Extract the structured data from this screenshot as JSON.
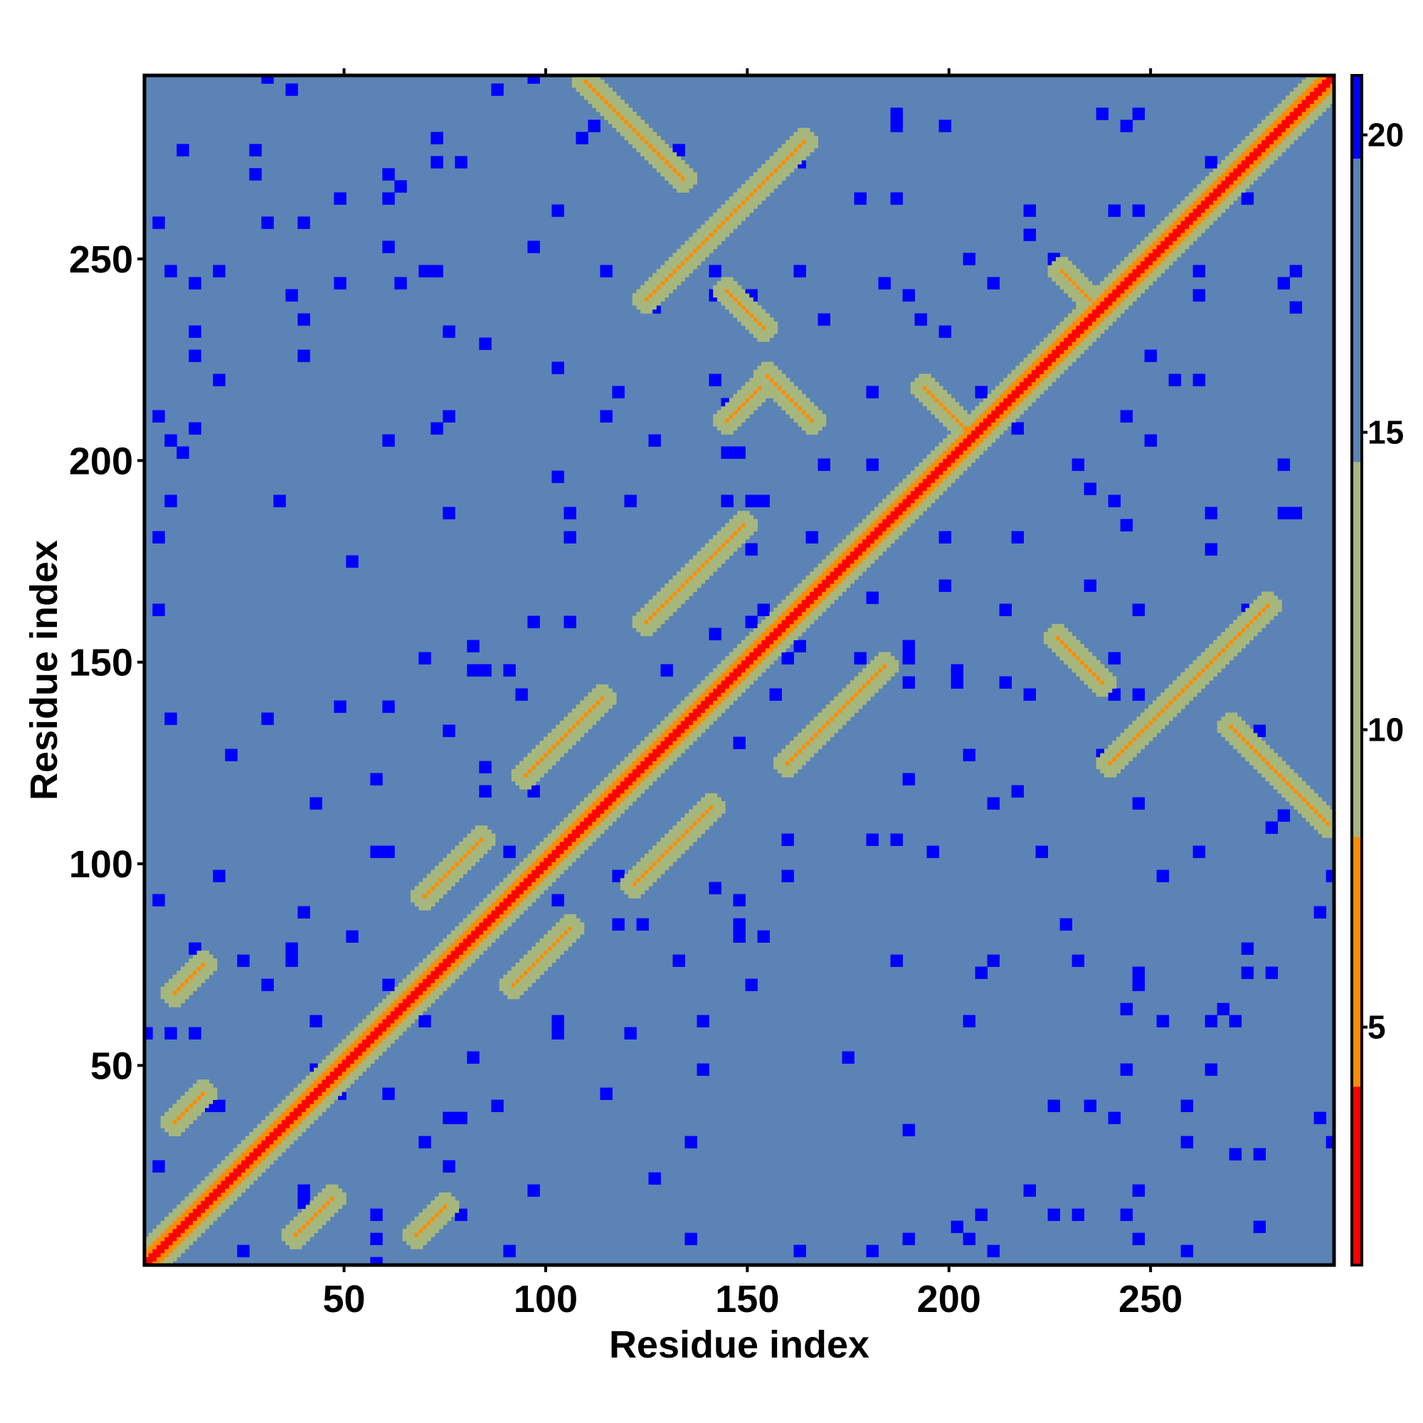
{
  "chart_data": {
    "type": "heatmap",
    "title": "",
    "xlabel": "Residue index",
    "ylabel": "Residue index",
    "n_residues": 295,
    "xlim": [
      1,
      295
    ],
    "ylim": [
      1,
      295
    ],
    "x_ticks": [
      50,
      100,
      150,
      200,
      250
    ],
    "y_ticks": [
      50,
      100,
      150,
      200,
      250
    ],
    "grid": false,
    "colorbar": {
      "position": "right",
      "range": [
        1,
        21
      ],
      "ticks": [
        5,
        10,
        15,
        20
      ],
      "bands": [
        {
          "from": 1,
          "to": 4,
          "color": "#ff0000"
        },
        {
          "from": 4,
          "to": 8.2,
          "color": "#ff8c00"
        },
        {
          "from": 8.2,
          "to": 14.5,
          "color": "#a6b77d"
        },
        {
          "from": 14.5,
          "to": 19.6,
          "color": "#5b83b5"
        },
        {
          "from": 19.6,
          "to": 21,
          "color": "#0000ff"
        }
      ]
    },
    "features": {
      "diagonal_band": {
        "from": 1,
        "to": 295,
        "value": 2
      },
      "distance_background": 17,
      "far_contacts_value": 21,
      "contact_strands": [
        {
          "i_start": 194,
          "j_start": 207,
          "length": 12,
          "orientation": "antiparallel"
        },
        {
          "i_start": 228,
          "j_start": 240,
          "length": 8,
          "orientation": "antiparallel"
        },
        {
          "i_start": 145,
          "j_start": 233,
          "length": 10,
          "orientation": "antiparallel"
        },
        {
          "i_start": 145,
          "j_start": 210,
          "length": 9,
          "orientation": "parallel"
        },
        {
          "i_start": 155,
          "j_start": 210,
          "length": 12,
          "orientation": "antiparallel"
        },
        {
          "i_start": 227,
          "j_start": 145,
          "length": 12,
          "orientation": "antiparallel"
        },
        {
          "i_start": 38,
          "j_start": 8,
          "length": 10,
          "orientation": "parallel"
        },
        {
          "i_start": 68,
          "j_start": 8,
          "length": 8,
          "orientation": "parallel"
        },
        {
          "i_start": 92,
          "j_start": 70,
          "length": 15,
          "orientation": "parallel"
        },
        {
          "i_start": 122,
          "j_start": 95,
          "length": 20,
          "orientation": "parallel"
        },
        {
          "i_start": 8,
          "j_start": 36,
          "length": 8,
          "orientation": "parallel"
        },
        {
          "i_start": 8,
          "j_start": 68,
          "length": 8,
          "orientation": "parallel"
        },
        {
          "i_start": 70,
          "j_start": 92,
          "length": 15,
          "orientation": "parallel"
        },
        {
          "i_start": 95,
          "j_start": 122,
          "length": 20,
          "orientation": "parallel"
        },
        {
          "i_start": 160,
          "j_start": 125,
          "length": 25,
          "orientation": "parallel"
        },
        {
          "i_start": 125,
          "j_start": 160,
          "length": 25,
          "orientation": "parallel"
        },
        {
          "i_start": 240,
          "j_start": 125,
          "length": 40,
          "orientation": "parallel"
        },
        {
          "i_start": 125,
          "j_start": 240,
          "length": 40,
          "orientation": "parallel"
        },
        {
          "i_start": 110,
          "j_start": 270,
          "length": 25,
          "orientation": "antiparallel"
        },
        {
          "i_start": 270,
          "j_start": 110,
          "length": 25,
          "orientation": "antiparallel"
        }
      ]
    }
  }
}
